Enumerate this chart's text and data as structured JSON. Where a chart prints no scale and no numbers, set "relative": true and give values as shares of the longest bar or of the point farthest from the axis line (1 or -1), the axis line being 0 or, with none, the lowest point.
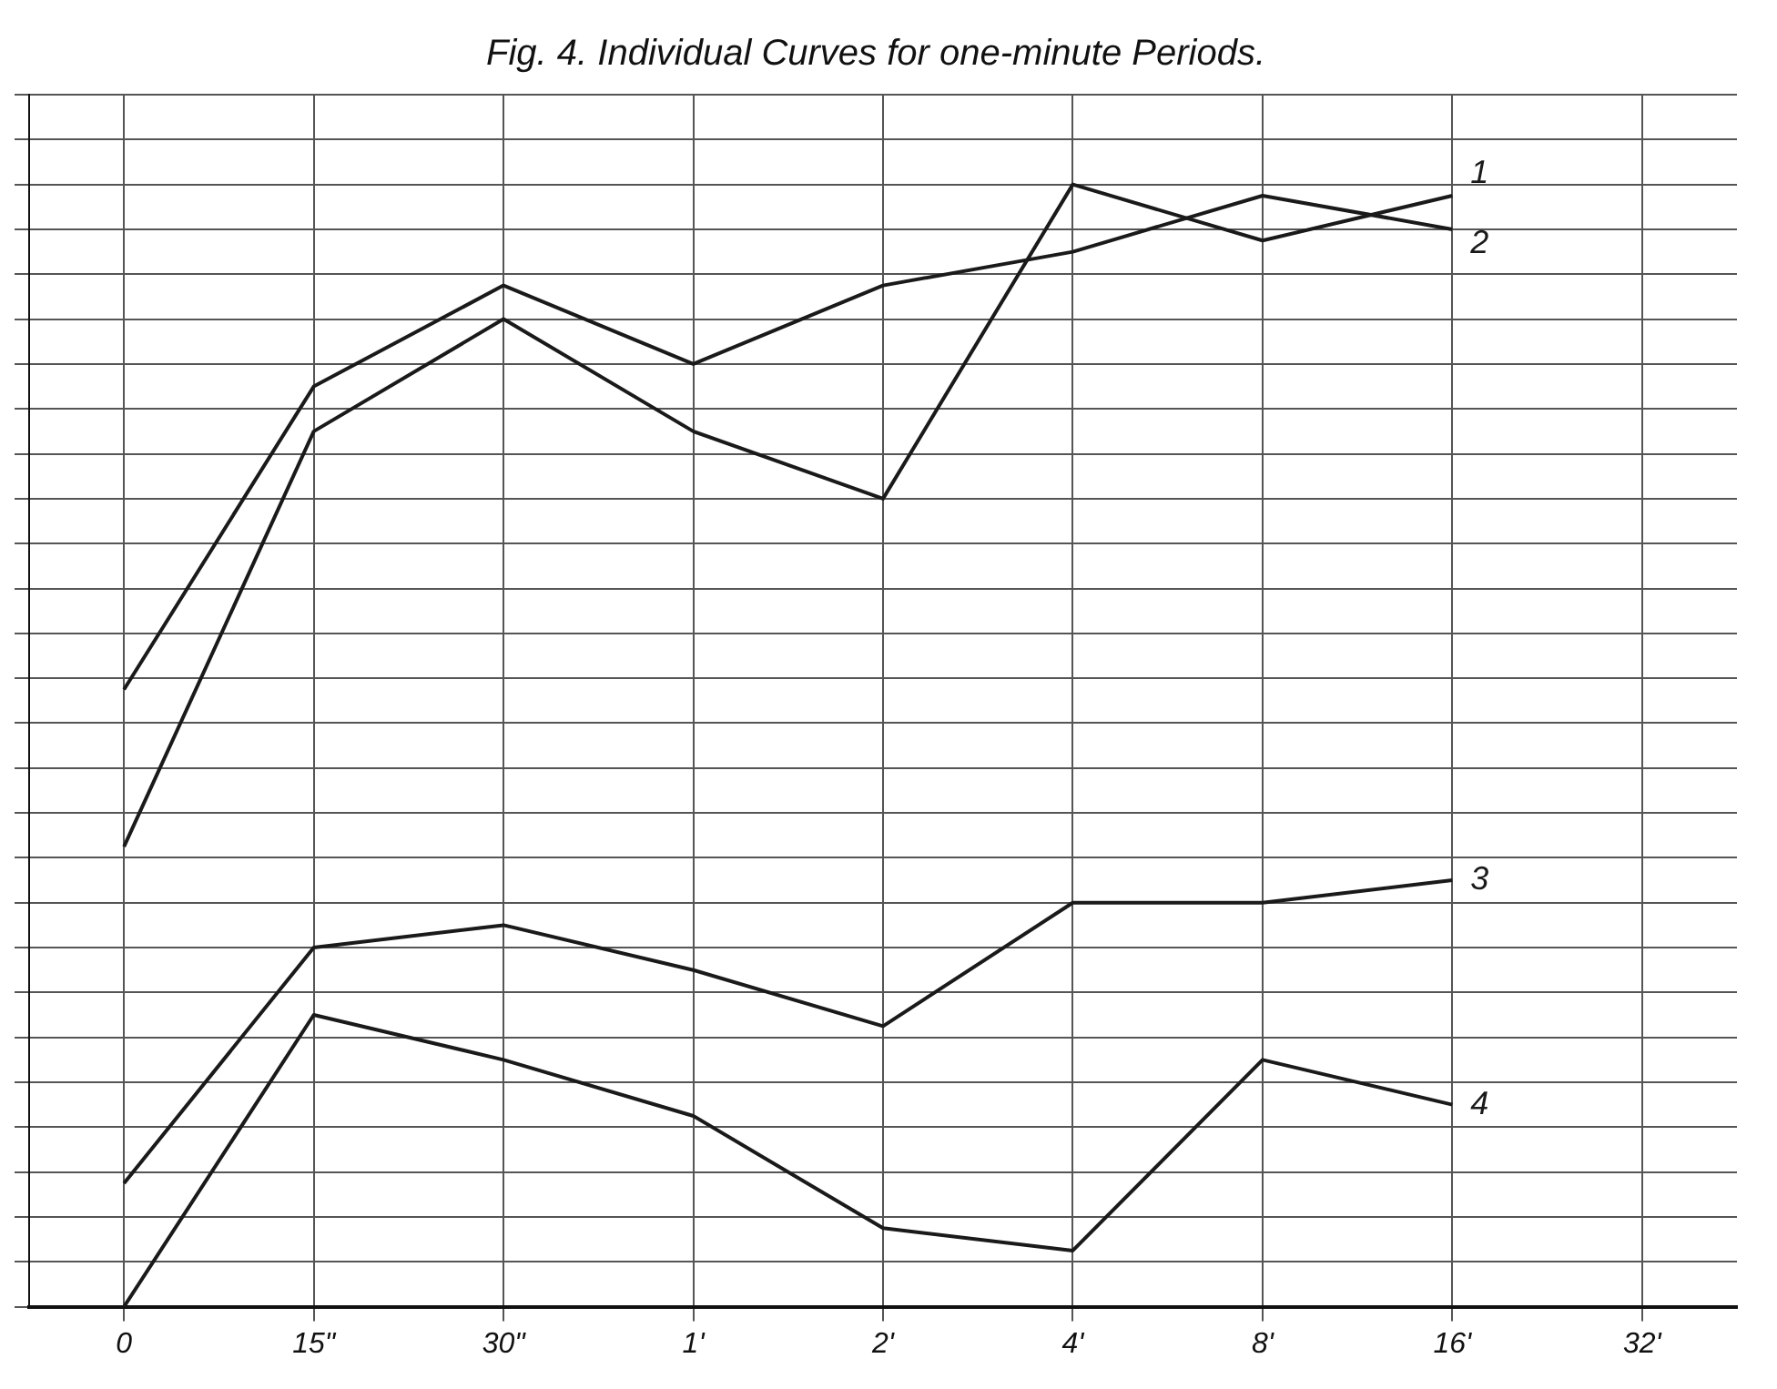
{
  "chart_data": {
    "type": "line",
    "title": "Fig. 4. Individual Curves for one-minute Periods.",
    "categories": [
      "0",
      "15\"",
      "30\"",
      "1'",
      "2'",
      "4'",
      "8'",
      "16'",
      "32'"
    ],
    "relative": true,
    "grid": true,
    "legend": false,
    "marker": "none",
    "line_style": "solid",
    "tick_labels": "x",
    "series": [
      {
        "name": "1",
        "color": "#1a1a1a",
        "values": [
          0.41,
          0.78,
          0.88,
          0.78,
          0.72,
          1.0,
          0.95,
          0.99,
          null
        ]
      },
      {
        "name": "2",
        "color": "#1a1a1a",
        "values": [
          0.55,
          0.82,
          0.91,
          0.84,
          0.91,
          0.94,
          0.99,
          0.96,
          null
        ]
      },
      {
        "name": "3",
        "color": "#1a1a1a",
        "values": [
          0.11,
          0.32,
          0.34,
          0.3,
          0.25,
          0.36,
          0.36,
          0.38,
          null
        ]
      },
      {
        "name": "4",
        "color": "#1a1a1a",
        "values": [
          0,
          0.26,
          0.22,
          0.17,
          0.07,
          0.05,
          0.22,
          0.18,
          null
        ]
      }
    ]
  }
}
